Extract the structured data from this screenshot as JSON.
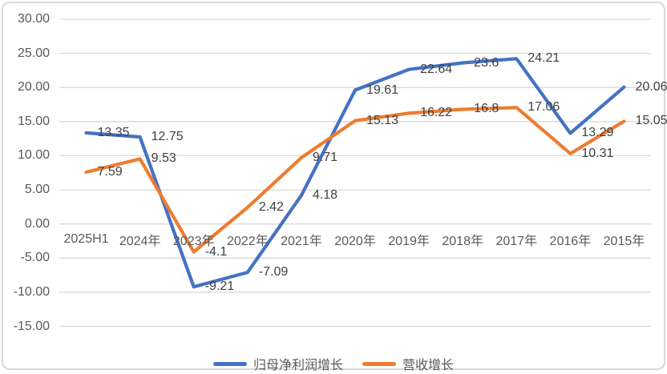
{
  "chart_data": {
    "type": "line",
    "title": "",
    "xlabel": "",
    "ylabel": "",
    "categories": [
      "2025H1",
      "2024年",
      "2023年",
      "2022年",
      "2021年",
      "2020年",
      "2019年",
      "2018年",
      "2017年",
      "2016年",
      "2015年"
    ],
    "series": [
      {
        "name": "归母净利润增长",
        "color": "#4472C4",
        "values": [
          13.35,
          12.75,
          -9.21,
          -7.09,
          4.18,
          19.61,
          22.64,
          23.6,
          24.21,
          13.29,
          20.06
        ]
      },
      {
        "name": "营收增长",
        "color": "#ED7D31",
        "values": [
          7.59,
          9.53,
          -4.1,
          2.42,
          9.71,
          15.13,
          16.22,
          16.8,
          17.06,
          10.31,
          15.05
        ]
      }
    ],
    "ylim": [
      -15,
      30
    ],
    "y_ticks": [
      "30.00",
      "25.00",
      "20.00",
      "15.00",
      "10.00",
      "5.00",
      "0.00",
      "-5.00",
      "-10.00",
      "-15.00"
    ],
    "grid": "on",
    "legend_position": "bottom",
    "data_labels": "shown"
  },
  "colors": {
    "background": "#FFFFFF",
    "border": "#D9D9D9",
    "gridline": "#D9D9D9",
    "axis_text": "#595959",
    "data_label_text": "#404040",
    "series_blue": "#4472C4",
    "series_orange": "#ED7D31"
  }
}
